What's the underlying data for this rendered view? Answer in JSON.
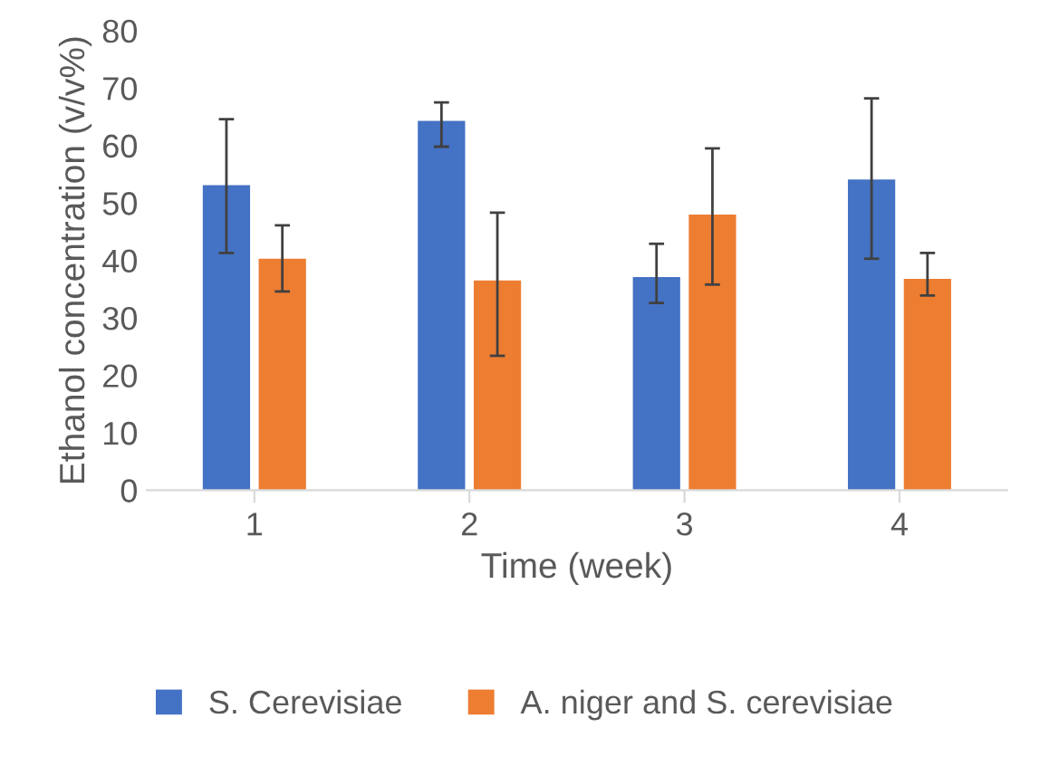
{
  "chart_data": {
    "type": "bar",
    "xlabel": "Time (week)",
    "ylabel": "Ethanol concentration (v/v%)",
    "categories": [
      "1",
      "2",
      "3",
      "4"
    ],
    "series": [
      {
        "name": "S. Cerevisiae",
        "color": "#4472c4",
        "values": [
          53.1,
          64.3,
          37.1,
          54.1
        ],
        "errors": [
          [
            41.3,
            64.6
          ],
          [
            59.8,
            67.5
          ],
          [
            32.6,
            42.9
          ],
          [
            40.3,
            68.2
          ]
        ]
      },
      {
        "name": "A. niger and S. cerevisiae",
        "color": "#ed7d31",
        "values": [
          40.3,
          36.5,
          48.0,
          36.8
        ],
        "errors": [
          [
            34.6,
            46.1
          ],
          [
            23.4,
            48.3
          ],
          [
            35.8,
            59.5
          ],
          [
            33.9,
            41.3
          ]
        ]
      }
    ],
    "ylim": [
      0,
      80
    ],
    "yticks": [
      0,
      10,
      20,
      30,
      40,
      50,
      60,
      70,
      80
    ],
    "grid": false,
    "legend": "bottom"
  }
}
